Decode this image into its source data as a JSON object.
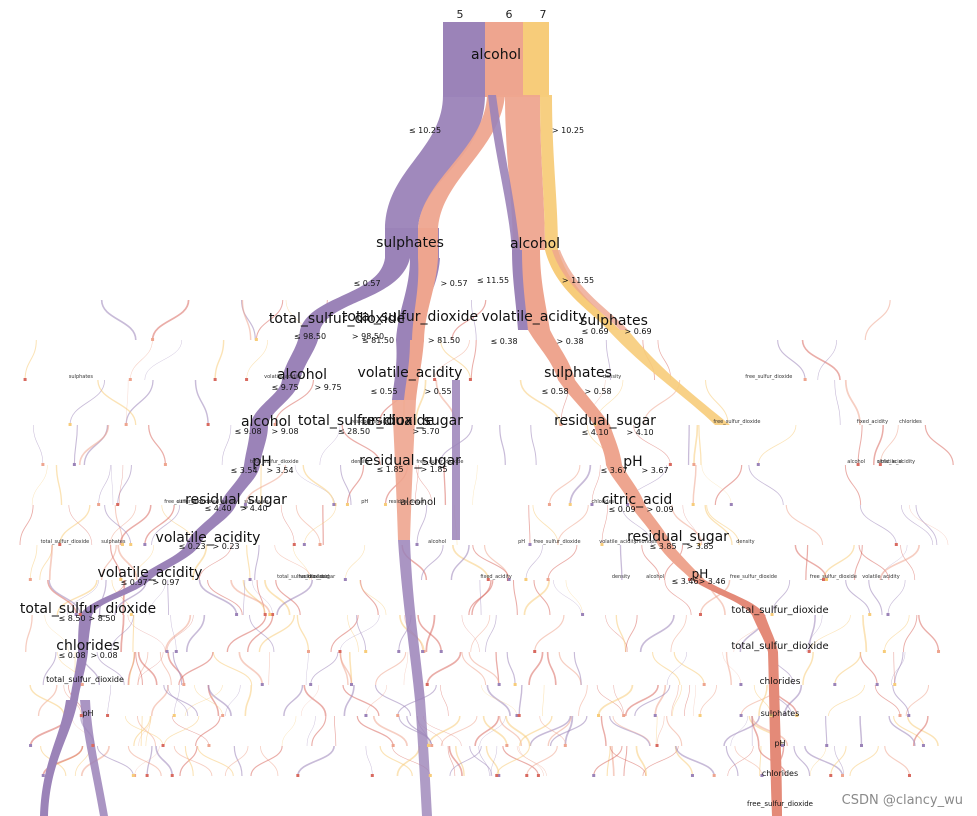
{
  "colors": {
    "class_5": "#9b83b8",
    "class_6": "#eea58f",
    "class_7": "#f7cc7a",
    "accent_red": "#d86a60"
  },
  "classes": [
    "5",
    "6",
    "7"
  ],
  "root": {
    "label": "alcohol",
    "left": "≤ 10.25",
    "right": "> 10.25"
  },
  "level2": [
    {
      "id": "n_sulphates",
      "label": "sulphates",
      "left": "≤ 0.57",
      "right": "> 0.57"
    },
    {
      "id": "n_alcohol2",
      "label": "alcohol",
      "left": "≤ 11.55",
      "right": "> 11.55"
    }
  ],
  "level3": [
    {
      "id": "n_tsd1",
      "label": "total_sulfur_dioxide",
      "left": "≤ 98.50",
      "right": "> 98.50"
    },
    {
      "id": "n_tsd2",
      "label": "total_sulfur_dioxide",
      "left": "≤ 81.50",
      "right": "> 81.50"
    },
    {
      "id": "n_va1",
      "label": "volatile_acidity",
      "left": "≤ 0.38",
      "right": "> 0.38"
    },
    {
      "id": "n_sulph2",
      "label": "sulphates",
      "left": "≤ 0.69",
      "right": "> 0.69"
    }
  ],
  "level4": [
    {
      "id": "n_alc3",
      "label": "alcohol",
      "left": "≤ 9.75",
      "right": "> 9.75"
    },
    {
      "id": "n_va2",
      "label": "volatile_acidity",
      "left": "≤ 0.55",
      "right": "> 0.55"
    },
    {
      "id": "n_sulph3",
      "label": "sulphates",
      "left": "≤ 0.58",
      "right": "> 0.58"
    }
  ],
  "level5": [
    {
      "id": "n_alc4",
      "label": "alcohol",
      "left": "≤ 9.08",
      "right": "> 9.08"
    },
    {
      "id": "n_tsd3",
      "label": "total_sulfur_dioxide",
      "left": "≤ 28.50",
      "right": ""
    },
    {
      "id": "n_rs1",
      "label": "residual_sugar",
      "left": "",
      "right": "> 5.70"
    },
    {
      "id": "n_rs2",
      "label": "residual_sugar",
      "left": "≤ 4.10",
      "right": "> 4.10"
    }
  ],
  "level6": [
    {
      "id": "n_ph1",
      "label": "pH",
      "left": "≤ 3.54",
      "right": "> 3.54"
    },
    {
      "id": "n_rs3",
      "label": "residual_sugar",
      "left": "≤ 1.85",
      "right": "> 1.85"
    },
    {
      "id": "n_ph2",
      "label": "pH",
      "left": "≤ 3.67",
      "right": "> 3.67"
    }
  ],
  "level7": [
    {
      "id": "n_rs4",
      "label": "residual_sugar",
      "left": "≤ 4.40",
      "right": "> 4.40"
    },
    {
      "id": "n_alc5",
      "label": "alcohol",
      "left": "",
      "right": ""
    },
    {
      "id": "n_ca",
      "label": "citric_acid",
      "left": "≤ 0.09",
      "right": "> 0.09"
    }
  ],
  "level8": [
    {
      "id": "n_va3",
      "label": "volatile_acidity",
      "left": "≤ 0.23",
      "right": "> 0.23"
    },
    {
      "id": "n_rs5",
      "label": "residual_sugar",
      "left": "≤ 3.85",
      "right": "> 3.85"
    }
  ],
  "level9": [
    {
      "id": "n_va4",
      "label": "volatile_acidity",
      "left": "≤ 0.97",
      "right": "> 0.97"
    },
    {
      "id": "n_ph3",
      "label": "pH",
      "left": "≤ 3.46",
      "right": "> 3.46"
    }
  ],
  "level10": [
    {
      "id": "n_tsd4",
      "label": "total_sulfur_dioxide",
      "left": "≤ 8.50",
      "right": "> 8.50"
    },
    {
      "id": "n_tsd5",
      "label": "total_sulfur_dioxide",
      "left": "",
      "right": ""
    }
  ],
  "level11": [
    {
      "id": "n_chl1",
      "label": "chlorides",
      "left": "≤ 0.08",
      "right": "> 0.08"
    },
    {
      "id": "n_tsd6",
      "label": "total_sulfur_dioxide",
      "left": "",
      "right": ""
    }
  ],
  "small_labels": [
    "volatile_acidity",
    "free_sulfur_dioxide",
    "density",
    "sulphates",
    "pH",
    "chlorides",
    "free_sulfur_dioxide",
    "residual_sugar",
    "fixed_acidity",
    "citric_acid",
    "total_sulfur_dioxide",
    "alcohol"
  ],
  "deep_labels": {
    "tsd7": "total_sulfur_dioxide",
    "chl2": "chlorides",
    "sulph4": "sulphates",
    "ph4": "pH",
    "chl3": "chlorides",
    "fsd": "free_sulfur_dioxide",
    "ph5": "pH"
  },
  "watermark": "CSDN @clancy_wu"
}
